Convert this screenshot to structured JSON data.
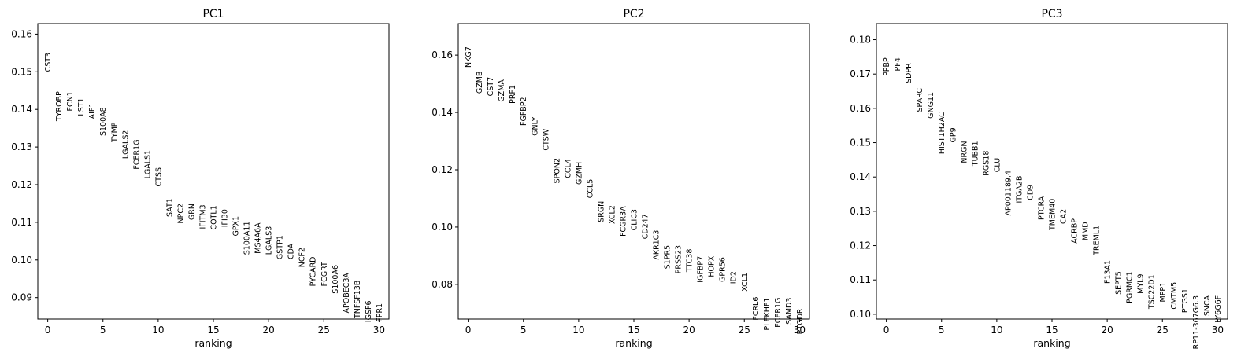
{
  "chart_data": [
    {
      "type": "scatter",
      "title": "PC1",
      "xlabel": "ranking",
      "ylabel": "",
      "xlim": [
        -0.9,
        30.9
      ],
      "ylim": [
        0.0843,
        0.1628
      ],
      "xticks": [
        0,
        5,
        10,
        15,
        20,
        25,
        30
      ],
      "yticks": [
        0.09,
        0.1,
        0.11,
        0.12,
        0.13,
        0.14,
        0.15,
        0.16
      ],
      "ytick_labels": [
        "0.09",
        "0.10",
        "0.11",
        "0.12",
        "0.13",
        "0.14",
        "0.15",
        "0.16"
      ],
      "points": [
        {
          "x": 0,
          "label": "CST3",
          "y": 0.1551
        },
        {
          "x": 1,
          "label": "TYROBP",
          "y": 0.1448
        },
        {
          "x": 2,
          "label": "FCN1",
          "y": 0.1448
        },
        {
          "x": 3,
          "label": "LST1",
          "y": 0.1431
        },
        {
          "x": 4,
          "label": "AIF1",
          "y": 0.1418
        },
        {
          "x": 5,
          "label": "S100A8",
          "y": 0.1406
        },
        {
          "x": 6,
          "label": "TYMP",
          "y": 0.1366
        },
        {
          "x": 7,
          "label": "LGALS2",
          "y": 0.1345
        },
        {
          "x": 8,
          "label": "FCER1G",
          "y": 0.132
        },
        {
          "x": 9,
          "label": "LGALS1",
          "y": 0.1292
        },
        {
          "x": 10,
          "label": "CTSS",
          "y": 0.1246
        },
        {
          "x": 11,
          "label": "SAT1",
          "y": 0.1164
        },
        {
          "x": 12,
          "label": "NPC2",
          "y": 0.115
        },
        {
          "x": 13,
          "label": "GRN",
          "y": 0.115
        },
        {
          "x": 14,
          "label": "IFITM3",
          "y": 0.1147
        },
        {
          "x": 15,
          "label": "COTL1",
          "y": 0.1145
        },
        {
          "x": 16,
          "label": "IFI30",
          "y": 0.1135
        },
        {
          "x": 17,
          "label": "GPX1",
          "y": 0.1117
        },
        {
          "x": 18,
          "label": "S100A11",
          "y": 0.1103
        },
        {
          "x": 19,
          "label": "MS4A6A",
          "y": 0.1099
        },
        {
          "x": 20,
          "label": "LGALS3",
          "y": 0.109
        },
        {
          "x": 21,
          "label": "GSTP1",
          "y": 0.1066
        },
        {
          "x": 22,
          "label": "CDA",
          "y": 0.1044
        },
        {
          "x": 23,
          "label": "NCF2",
          "y": 0.1033
        },
        {
          "x": 24,
          "label": "PYCARD",
          "y": 0.1009
        },
        {
          "x": 25,
          "label": "FCGRT",
          "y": 0.0995
        },
        {
          "x": 26,
          "label": "S100A6",
          "y": 0.0987
        },
        {
          "x": 27,
          "label": "APOBEC3A",
          "y": 0.0966
        },
        {
          "x": 28,
          "label": "TNFSF13B",
          "y": 0.0946
        },
        {
          "x": 29,
          "label": "IGSF6",
          "y": 0.0892
        },
        {
          "x": 30,
          "label": "FPR1",
          "y": 0.0885
        }
      ]
    },
    {
      "type": "scatter",
      "title": "PC2",
      "xlabel": "ranking",
      "ylabel": "",
      "xlim": [
        -0.9,
        30.9
      ],
      "ylim": [
        0.0679,
        0.171
      ],
      "xticks": [
        0,
        5,
        10,
        15,
        20,
        25,
        30
      ],
      "yticks": [
        0.08,
        0.1,
        0.12,
        0.14,
        0.16
      ],
      "ytick_labels": [
        "0.08",
        "0.10",
        "0.12",
        "0.14",
        "0.16"
      ],
      "points": [
        {
          "x": 0,
          "label": "NKG7",
          "y": 0.163
        },
        {
          "x": 1,
          "label": "GZMB",
          "y": 0.1544
        },
        {
          "x": 2,
          "label": "CST7",
          "y": 0.1524
        },
        {
          "x": 3,
          "label": "GZMA",
          "y": 0.1515
        },
        {
          "x": 4,
          "label": "PRF1",
          "y": 0.1496
        },
        {
          "x": 5,
          "label": "FGFBP2",
          "y": 0.1454
        },
        {
          "x": 6,
          "label": "GNLY",
          "y": 0.1385
        },
        {
          "x": 7,
          "label": "CTSW",
          "y": 0.1343
        },
        {
          "x": 8,
          "label": "SPON2",
          "y": 0.1241
        },
        {
          "x": 9,
          "label": "CCL4",
          "y": 0.1238
        },
        {
          "x": 10,
          "label": "GZMH",
          "y": 0.1228
        },
        {
          "x": 11,
          "label": "CCL5",
          "y": 0.1168
        },
        {
          "x": 12,
          "label": "SRGN",
          "y": 0.1091
        },
        {
          "x": 13,
          "label": "XCL2",
          "y": 0.1076
        },
        {
          "x": 14,
          "label": "FCGR3A",
          "y": 0.1073
        },
        {
          "x": 15,
          "label": "CLIC3",
          "y": 0.1063
        },
        {
          "x": 16,
          "label": "CD247",
          "y": 0.1046
        },
        {
          "x": 17,
          "label": "AKR1C3",
          "y": 0.099
        },
        {
          "x": 18,
          "label": "S1PR5",
          "y": 0.0937
        },
        {
          "x": 19,
          "label": "PRSS23",
          "y": 0.0937
        },
        {
          "x": 20,
          "label": "TTC38",
          "y": 0.0924
        },
        {
          "x": 21,
          "label": "IGFBP7",
          "y": 0.0899
        },
        {
          "x": 22,
          "label": "HOPX",
          "y": 0.0899
        },
        {
          "x": 23,
          "label": "GPR56",
          "y": 0.0895
        },
        {
          "x": 24,
          "label": "ID2",
          "y": 0.0846
        },
        {
          "x": 25,
          "label": "XCL1",
          "y": 0.0841
        },
        {
          "x": 26,
          "label": "FCRL6",
          "y": 0.0757
        },
        {
          "x": 27,
          "label": "PLEKHF1",
          "y": 0.0754
        },
        {
          "x": 28,
          "label": "FCER1G",
          "y": 0.0754
        },
        {
          "x": 29,
          "label": "SAMD3",
          "y": 0.0754
        },
        {
          "x": 30,
          "label": "PTGDR",
          "y": 0.0716
        }
      ]
    },
    {
      "type": "scatter",
      "title": "PC3",
      "xlabel": "ranking",
      "ylabel": "",
      "xlim": [
        -0.9,
        30.9
      ],
      "ylim": [
        0.0986,
        0.1847
      ],
      "xticks": [
        0,
        5,
        10,
        15,
        20,
        25,
        30
      ],
      "yticks": [
        0.1,
        0.11,
        0.12,
        0.13,
        0.14,
        0.15,
        0.16,
        0.17,
        0.18
      ],
      "ytick_labels": [
        "0.10",
        "0.11",
        "0.12",
        "0.13",
        "0.14",
        "0.15",
        "0.16",
        "0.17",
        "0.18"
      ],
      "points": [
        {
          "x": 0,
          "label": "PPBP",
          "y": 0.1748
        },
        {
          "x": 1,
          "label": "PF4",
          "y": 0.1748
        },
        {
          "x": 2,
          "label": "SDPR",
          "y": 0.1732
        },
        {
          "x": 3,
          "label": "SPARC",
          "y": 0.1659
        },
        {
          "x": 4,
          "label": "GNG11",
          "y": 0.1648
        },
        {
          "x": 5,
          "label": "HIST1H2AC",
          "y": 0.159
        },
        {
          "x": 6,
          "label": "GP9",
          "y": 0.1544
        },
        {
          "x": 7,
          "label": "NRGN",
          "y": 0.1505
        },
        {
          "x": 8,
          "label": "TUBB1",
          "y": 0.1505
        },
        {
          "x": 9,
          "label": "RGS18",
          "y": 0.1477
        },
        {
          "x": 10,
          "label": "CLU",
          "y": 0.1456
        },
        {
          "x": 11,
          "label": "AP001189.4",
          "y": 0.1419
        },
        {
          "x": 12,
          "label": "ITGA2B",
          "y": 0.1404
        },
        {
          "x": 13,
          "label": "CD9",
          "y": 0.1378
        },
        {
          "x": 14,
          "label": "PTCRA",
          "y": 0.1344
        },
        {
          "x": 15,
          "label": "TMEM40",
          "y": 0.1337
        },
        {
          "x": 16,
          "label": "CA2",
          "y": 0.1307
        },
        {
          "x": 17,
          "label": "ACRBP",
          "y": 0.1279
        },
        {
          "x": 18,
          "label": "MMD",
          "y": 0.1269
        },
        {
          "x": 19,
          "label": "TREML1",
          "y": 0.1259
        },
        {
          "x": 20,
          "label": "F13A1",
          "y": 0.1158
        },
        {
          "x": 21,
          "label": "SEPT5",
          "y": 0.1125
        },
        {
          "x": 22,
          "label": "PGRMC1",
          "y": 0.1125
        },
        {
          "x": 23,
          "label": "MYL9",
          "y": 0.1118
        },
        {
          "x": 24,
          "label": "TSC22D1",
          "y": 0.1116
        },
        {
          "x": 25,
          "label": "MPP1",
          "y": 0.1094
        },
        {
          "x": 26,
          "label": "CMTM5",
          "y": 0.1094
        },
        {
          "x": 27,
          "label": "PTGS1",
          "y": 0.1075
        },
        {
          "x": 28,
          "label": "RP11-367G6.3",
          "y": 0.1055
        },
        {
          "x": 29,
          "label": "SNCA",
          "y": 0.1055
        },
        {
          "x": 30,
          "label": "LY6G6F",
          "y": 0.1055
        }
      ]
    }
  ]
}
